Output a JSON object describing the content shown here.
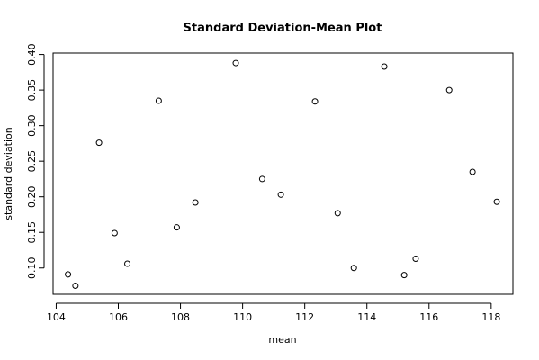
{
  "chart_data": {
    "type": "scatter",
    "title": "Standard Deviation-Mean Plot",
    "xlabel": "mean",
    "ylabel": "standard deviation",
    "xlim": [
      103.9,
      118.7
    ],
    "ylim": [
      0.063,
      0.402
    ],
    "xticks": [
      104,
      106,
      108,
      110,
      112,
      114,
      116,
      118
    ],
    "yticks": [
      0.1,
      0.15,
      0.2,
      0.25,
      0.3,
      0.35,
      0.4
    ],
    "xtick_labels": [
      "104",
      "106",
      "108",
      "110",
      "112",
      "114",
      "116",
      "118"
    ],
    "ytick_labels": [
      "0.10",
      "0.15",
      "0.20",
      "0.25",
      "0.30",
      "0.35",
      "0.40"
    ],
    "grid": false,
    "x": [
      104.38,
      104.62,
      105.38,
      105.88,
      106.29,
      107.3,
      107.88,
      108.48,
      109.78,
      110.63,
      111.23,
      112.33,
      113.06,
      113.58,
      114.56,
      115.2,
      115.57,
      116.65,
      117.4,
      118.18
    ],
    "y": [
      0.091,
      0.075,
      0.276,
      0.149,
      0.106,
      0.335,
      0.157,
      0.192,
      0.388,
      0.225,
      0.203,
      0.334,
      0.177,
      0.1,
      0.383,
      0.09,
      0.113,
      0.35,
      0.235,
      0.193
    ]
  }
}
